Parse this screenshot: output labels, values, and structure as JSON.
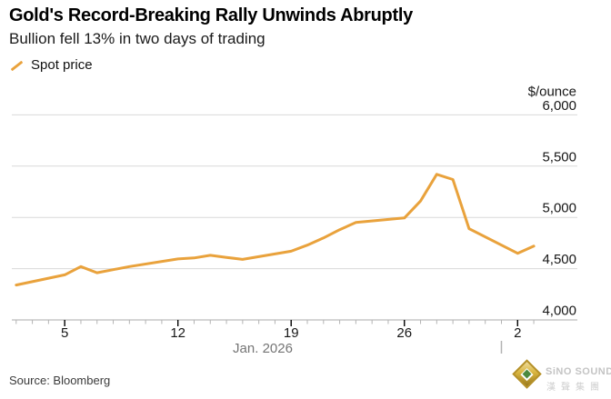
{
  "header": {
    "title": "Gold's Record-Breaking Rally Unwinds Abruptly",
    "subtitle": "Bullion fell 13% in two days of trading"
  },
  "legend": {
    "label": "Spot price"
  },
  "source": {
    "text": "Source: Bloomberg"
  },
  "watermark": {
    "brand": "SiNO SOUND",
    "brand_cn": "漢聲集團"
  },
  "colors": {
    "line": "#E9A23C",
    "grid": "#d9d9d9",
    "axis_baseline": "#ababab",
    "tick_minor": "#b3b3b3",
    "tick_major": "#000000",
    "tick_label": "#161616",
    "muted_text": "#757575"
  },
  "chart_data": {
    "type": "line",
    "title": "Gold's Record-Breaking Rally Unwinds Abruptly",
    "subtitle": "Bullion fell 13% in two days of trading",
    "ylabel_unit": "$/ounce",
    "x_axis_label": "Jan. 2026",
    "ylim": [
      4000,
      6000
    ],
    "yticks": [
      {
        "value": 4000,
        "label": "4,000"
      },
      {
        "value": 4500,
        "label": "4,500"
      },
      {
        "value": 5000,
        "label": "5,000"
      },
      {
        "value": 5500,
        "label": "5,500"
      },
      {
        "value": 6000,
        "label": "6,000"
      }
    ],
    "xticks_major": [
      {
        "label": "5",
        "day": 5
      },
      {
        "label": "12",
        "day": 12
      },
      {
        "label": "19",
        "day": 19
      },
      {
        "label": "26",
        "day": 26
      },
      {
        "label": "2",
        "day": 33
      }
    ],
    "minor_tick_day_range": [
      2,
      34
    ],
    "month_divider_day": 32,
    "grid": true,
    "legend_position": "top-left",
    "series": [
      {
        "name": "Spot price",
        "color": "#E9A23C",
        "points": [
          {
            "date": "Jan 2",
            "day": 2,
            "value": 4340
          },
          {
            "date": "Jan 5",
            "day": 5,
            "value": 4440
          },
          {
            "date": "Jan 6",
            "day": 6,
            "value": 4520
          },
          {
            "date": "Jan 7",
            "day": 7,
            "value": 4460
          },
          {
            "date": "Jan 8",
            "day": 8,
            "value": 4490
          },
          {
            "date": "Jan 9",
            "day": 9,
            "value": 4520
          },
          {
            "date": "Jan 12",
            "day": 12,
            "value": 4595
          },
          {
            "date": "Jan 13",
            "day": 13,
            "value": 4605
          },
          {
            "date": "Jan 14",
            "day": 14,
            "value": 4630
          },
          {
            "date": "Jan 15",
            "day": 15,
            "value": 4610
          },
          {
            "date": "Jan 16",
            "day": 16,
            "value": 4590
          },
          {
            "date": "Jan 19",
            "day": 19,
            "value": 4670
          },
          {
            "date": "Jan 20",
            "day": 20,
            "value": 4730
          },
          {
            "date": "Jan 21",
            "day": 21,
            "value": 4800
          },
          {
            "date": "Jan 22",
            "day": 22,
            "value": 4880
          },
          {
            "date": "Jan 23",
            "day": 23,
            "value": 4950
          },
          {
            "date": "Jan 26",
            "day": 26,
            "value": 4995
          },
          {
            "date": "Jan 27",
            "day": 27,
            "value": 5160
          },
          {
            "date": "Jan 28",
            "day": 28,
            "value": 5420
          },
          {
            "date": "Jan 29",
            "day": 29,
            "value": 5370
          },
          {
            "date": "Jan 30",
            "day": 30,
            "value": 4890
          },
          {
            "date": "Feb 2",
            "day": 33,
            "value": 4650
          },
          {
            "date": "Feb 3",
            "day": 34,
            "value": 4720
          }
        ]
      }
    ]
  }
}
